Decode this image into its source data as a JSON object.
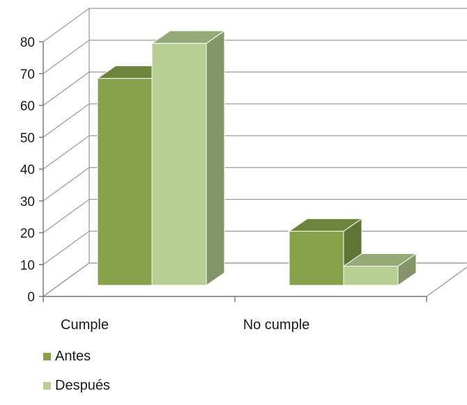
{
  "chart_data": {
    "type": "bar",
    "categories": [
      "Cumple",
      "No cumple"
    ],
    "series": [
      {
        "name": "Antes",
        "values": [
          65,
          17
        ],
        "color": "#86a14a"
      },
      {
        "name": "Después",
        "values": [
          76,
          6
        ],
        "color": "#b7cf92"
      }
    ],
    "yticks": [
      0,
      10,
      20,
      30,
      40,
      50,
      60,
      70,
      80
    ],
    "ylim": [
      0,
      80
    ],
    "grid": true,
    "legend_position": "bottom-left",
    "title": "",
    "xlabel": "",
    "ylabel": ""
  }
}
